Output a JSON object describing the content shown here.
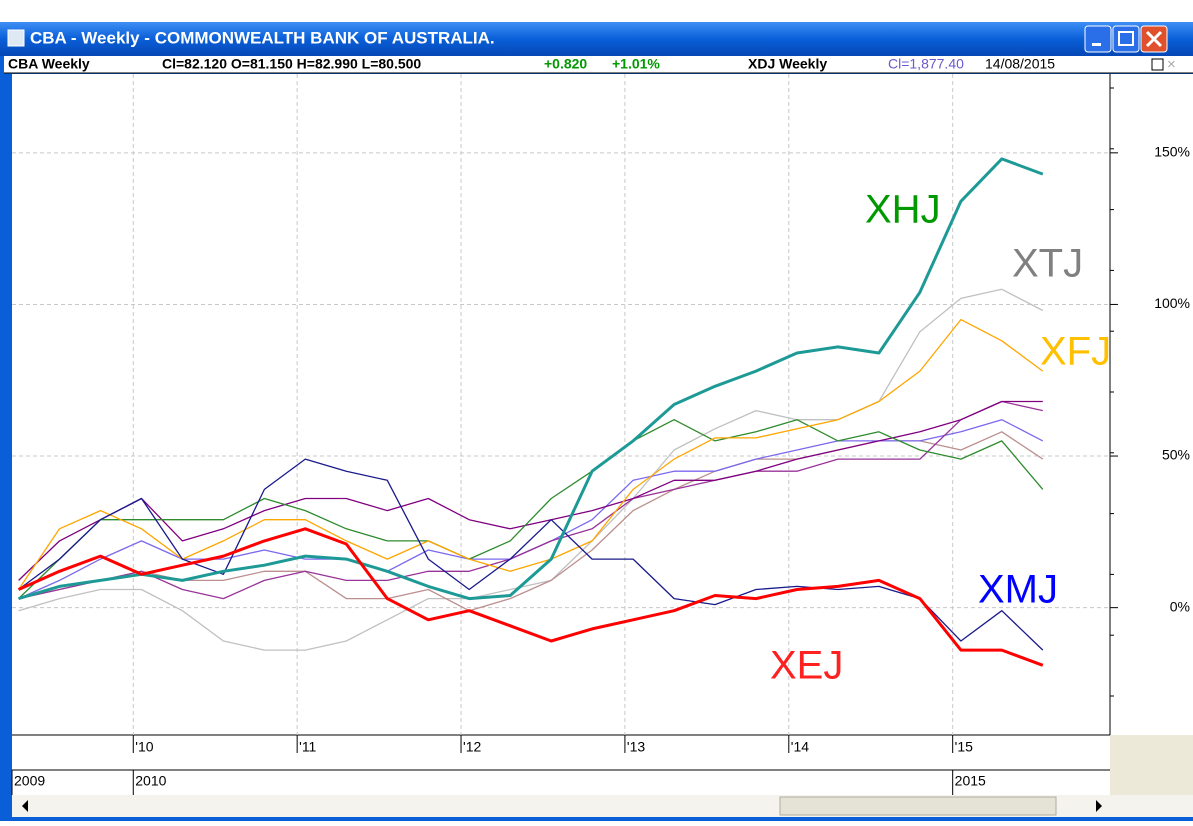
{
  "window": {
    "title": "CBA - Weekly - COMMONWEALTH BANK OF AUSTRALIA."
  },
  "info_bar": {
    "symbol": "CBA Weekly",
    "prices": "Cl=82.120 O=81.150 H=82.990 L=80.500",
    "change": "+0.820",
    "change_pct": "+1.01%",
    "symbol2": "XDJ Weekly",
    "prices2": "Cl=1,877.40",
    "date": "14/08/2015"
  },
  "chart_data": {
    "type": "line",
    "x": [
      2009.3,
      2009.55,
      2009.8,
      2010.05,
      2010.3,
      2010.55,
      2010.8,
      2011.05,
      2011.3,
      2011.55,
      2011.8,
      2012.05,
      2012.3,
      2012.55,
      2012.8,
      2013.05,
      2013.3,
      2013.55,
      2013.8,
      2014.05,
      2014.3,
      2014.55,
      2014.8,
      2015.05,
      2015.3,
      2015.55
    ],
    "xlim": [
      2009.26,
      2015.96
    ],
    "xticks": [
      {
        "value": 2010,
        "label": "'10"
      },
      {
        "value": 2011,
        "label": "'11"
      },
      {
        "value": 2012,
        "label": "'12"
      },
      {
        "value": 2013,
        "label": "'13"
      },
      {
        "value": 2014,
        "label": "'14"
      },
      {
        "value": 2015,
        "label": "'15"
      }
    ],
    "xticks2": [
      {
        "value": 2009.26,
        "label": "2009"
      },
      {
        "value": 2010,
        "label": "2010"
      },
      {
        "value": 2015,
        "label": "2015"
      }
    ],
    "ylim": [
      -42,
      176
    ],
    "yticks": [
      {
        "value": 0,
        "label": "0%"
      },
      {
        "value": 50,
        "label": "50%"
      },
      {
        "value": 100,
        "label": "100%"
      },
      {
        "value": 150,
        "label": "150%"
      }
    ],
    "grid": true,
    "series": [
      {
        "name": "XTJ",
        "color": "#c0c0c0",
        "label_color": "#808080",
        "line_width": 1.3,
        "values": [
          -1,
          3,
          6,
          6,
          -1,
          -11,
          -14,
          -14,
          -11,
          -4,
          3,
          3,
          6,
          9,
          22,
          36,
          52,
          59,
          65,
          62,
          62,
          68,
          91,
          102,
          105,
          98
        ]
      },
      {
        "color": "#bc8f8f",
        "line_width": 1.3,
        "values": [
          3,
          6,
          9,
          12,
          9,
          9,
          12,
          12,
          3,
          3,
          6,
          -1,
          3,
          9,
          19,
          32,
          39,
          45,
          49,
          49,
          52,
          55,
          55,
          52,
          58,
          49
        ]
      },
      {
        "color": "#7b68ee",
        "line_width": 1.3,
        "values": [
          3,
          9,
          16,
          22,
          16,
          16,
          19,
          16,
          16,
          12,
          19,
          16,
          16,
          22,
          29,
          42,
          45,
          45,
          49,
          52,
          55,
          55,
          55,
          58,
          62,
          55
        ]
      },
      {
        "color": "#993399",
        "line_width": 1.3,
        "values": [
          3,
          6,
          9,
          12,
          6,
          3,
          9,
          12,
          9,
          9,
          12,
          12,
          16,
          22,
          26,
          36,
          39,
          42,
          45,
          45,
          49,
          49,
          49,
          62,
          68,
          65
        ]
      },
      {
        "color": "#800080",
        "line_width": 1.3,
        "values": [
          9,
          22,
          29,
          36,
          22,
          26,
          32,
          36,
          36,
          32,
          36,
          29,
          26,
          29,
          32,
          36,
          42,
          42,
          45,
          49,
          52,
          55,
          58,
          62,
          68,
          68
        ]
      },
      {
        "color": "#2e8b2e",
        "line_width": 1.3,
        "values": [
          3,
          16,
          29,
          29,
          29,
          29,
          36,
          32,
          26,
          22,
          22,
          16,
          22,
          36,
          45,
          55,
          62,
          55,
          58,
          62,
          55,
          58,
          52,
          49,
          55,
          39
        ]
      },
      {
        "name": "XFJ",
        "color": "#ffa500",
        "label_color": "#ffc000",
        "line_width": 1.3,
        "values": [
          6,
          26,
          32,
          26,
          16,
          22,
          29,
          29,
          22,
          16,
          22,
          16,
          12,
          16,
          22,
          39,
          49,
          56,
          56,
          59,
          62,
          68,
          78,
          95,
          88,
          78
        ]
      },
      {
        "name": "XMJ",
        "color": "#1a1a8c",
        "label_color": "#0000ff",
        "line_width": 1.3,
        "values": [
          6,
          16,
          29,
          36,
          16,
          11,
          39,
          49,
          45,
          42,
          16,
          6,
          16,
          29,
          16,
          16,
          3,
          1,
          6,
          7,
          6,
          7,
          3,
          -11,
          -1,
          -14
        ]
      },
      {
        "name": "XHJ",
        "color": "#1e9a96",
        "label_color": "#009900",
        "line_width": 3,
        "values": [
          3,
          7,
          9,
          11,
          9,
          12,
          14,
          17,
          16,
          12,
          7,
          3,
          4,
          16,
          45,
          55,
          67,
          73,
          78,
          84,
          86,
          84,
          104,
          134,
          148,
          143
        ]
      },
      {
        "name": "XEJ",
        "color": "#ff0000",
        "label_color": "#ff2020",
        "line_width": 3,
        "values": [
          6,
          12,
          17,
          11,
          14,
          17,
          22,
          26,
          21,
          3,
          -4,
          -1,
          -6,
          -11,
          -7,
          -4,
          -1,
          4,
          3,
          6,
          7,
          9,
          3,
          -14,
          -14,
          -19
        ]
      }
    ]
  }
}
